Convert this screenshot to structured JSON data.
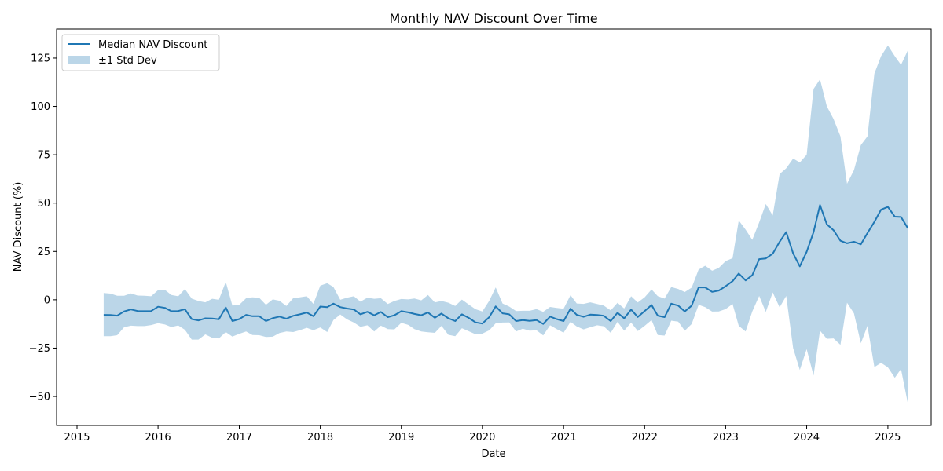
{
  "chart_data": {
    "type": "line",
    "title": "Monthly NAV Discount Over Time",
    "xlabel": "Date",
    "ylabel": "NAV Discount (%)",
    "xlim": [
      "2014-10-01",
      "2025-07-15"
    ],
    "ylim": [
      -65,
      140
    ],
    "x_ticks": [
      "2015-01-01",
      "2016-01-01",
      "2017-01-01",
      "2018-01-01",
      "2019-01-01",
      "2020-01-01",
      "2021-01-01",
      "2022-01-01",
      "2023-01-01",
      "2024-01-01",
      "2025-01-01"
    ],
    "x_tick_labels": [
      "2015",
      "2016",
      "2017",
      "2018",
      "2019",
      "2020",
      "2021",
      "2022",
      "2023",
      "2024",
      "2025"
    ],
    "y_ticks": [
      -50,
      -25,
      0,
      25,
      50,
      75,
      100,
      125
    ],
    "y_tick_labels": [
      "−50",
      "−25",
      "0",
      "25",
      "50",
      "75",
      "100",
      "125"
    ],
    "grid": false,
    "legend": {
      "placement": "top-left",
      "entries": [
        "Median NAV Discount",
        "±1 Std Dev"
      ]
    },
    "colors": {
      "line": "#1f77b4",
      "band": "#1f77b4",
      "band_opacity": 0.3
    },
    "series": [
      {
        "name": "Median NAV Discount",
        "x": [
          "2015-05",
          "2015-06",
          "2015-07",
          "2015-08",
          "2015-09",
          "2015-10",
          "2015-11",
          "2015-12",
          "2016-01",
          "2016-02",
          "2016-03",
          "2016-04",
          "2016-05",
          "2016-06",
          "2016-07",
          "2016-08",
          "2016-09",
          "2016-10",
          "2016-11",
          "2016-12",
          "2017-01",
          "2017-02",
          "2017-03",
          "2017-04",
          "2017-05",
          "2017-06",
          "2017-07",
          "2017-08",
          "2017-09",
          "2017-10",
          "2017-11",
          "2017-12",
          "2018-01",
          "2018-02",
          "2018-03",
          "2018-04",
          "2018-05",
          "2018-06",
          "2018-07",
          "2018-08",
          "2018-09",
          "2018-10",
          "2018-11",
          "2018-12",
          "2019-01",
          "2019-02",
          "2019-03",
          "2019-04",
          "2019-05",
          "2019-06",
          "2019-07",
          "2019-08",
          "2019-09",
          "2019-10",
          "2019-11",
          "2019-12",
          "2020-01",
          "2020-02",
          "2020-03",
          "2020-04",
          "2020-05",
          "2020-06",
          "2020-07",
          "2020-08",
          "2020-09",
          "2020-10",
          "2020-11",
          "2020-12",
          "2021-01",
          "2021-02",
          "2021-03",
          "2021-04",
          "2021-05",
          "2021-06",
          "2021-07",
          "2021-08",
          "2021-09",
          "2021-10",
          "2021-11",
          "2021-12",
          "2022-01",
          "2022-02",
          "2022-03",
          "2022-04",
          "2022-05",
          "2022-06",
          "2022-07",
          "2022-08",
          "2022-09",
          "2022-10",
          "2022-11",
          "2022-12",
          "2023-01",
          "2023-02",
          "2023-03",
          "2023-04",
          "2023-05",
          "2023-06",
          "2023-07",
          "2023-08",
          "2023-09",
          "2023-10",
          "2023-11",
          "2023-12",
          "2024-01",
          "2024-02",
          "2024-03",
          "2024-04",
          "2024-05",
          "2024-06",
          "2024-07",
          "2024-08",
          "2024-09",
          "2024-10",
          "2024-11",
          "2024-12",
          "2025-01",
          "2025-02",
          "2025-03",
          "2025-04"
        ],
        "median": [
          -7.8,
          -7.9,
          -8.2,
          -6.0,
          -5.0,
          -5.8,
          -5.9,
          -5.8,
          -3.6,
          -4.2,
          -5.9,
          -5.8,
          -4.9,
          -10.0,
          -10.7,
          -9.6,
          -9.7,
          -10.1,
          -4.0,
          -11.0,
          -10.0,
          -7.8,
          -8.5,
          -8.5,
          -11.0,
          -9.5,
          -8.7,
          -9.8,
          -8.3,
          -7.5,
          -6.6,
          -8.5,
          -3.5,
          -3.8,
          -2.0,
          -3.8,
          -4.5,
          -5.0,
          -7.5,
          -6.2,
          -8.0,
          -6.3,
          -9.0,
          -8.0,
          -5.9,
          -6.5,
          -7.3,
          -8.0,
          -6.6,
          -9.3,
          -7.1,
          -9.6,
          -11.0,
          -7.5,
          -9.4,
          -11.7,
          -12.3,
          -9.0,
          -3.4,
          -7.0,
          -7.5,
          -11.0,
          -10.5,
          -10.9,
          -10.5,
          -12.5,
          -8.7,
          -10.0,
          -11.0,
          -4.6,
          -7.8,
          -8.8,
          -7.7,
          -7.9,
          -8.3,
          -11.0,
          -6.7,
          -9.6,
          -5.1,
          -8.9,
          -5.8,
          -2.7,
          -8.2,
          -9.0,
          -2.0,
          -3.0,
          -6.0,
          -3.0,
          6.4,
          6.4,
          4.1,
          4.8,
          7.0,
          9.6,
          13.6,
          10.0,
          12.7,
          21.0,
          21.4,
          23.8,
          30.0,
          35.0,
          24.0,
          17.3,
          24.8,
          35.0,
          49.0,
          39.0,
          36.0,
          30.5,
          29.2,
          30.0,
          28.7,
          34.5,
          40.3,
          46.6,
          48.0,
          43.0,
          42.8,
          37.0
        ],
        "std_upper": [
          3.5,
          3.2,
          2.1,
          2.1,
          3.3,
          2.2,
          2.1,
          1.8,
          5.0,
          5.1,
          2.5,
          1.8,
          5.5,
          0.6,
          -0.6,
          -1.3,
          0.5,
          0.0,
          9.3,
          -3.0,
          -2.6,
          0.8,
          1.3,
          1.0,
          -2.6,
          0.2,
          -0.5,
          -3.2,
          0.8,
          1.3,
          1.8,
          -2.1,
          7.3,
          8.6,
          6.6,
          0.0,
          1.1,
          1.8,
          -1.0,
          1.1,
          0.5,
          0.8,
          -2.2,
          -0.6,
          0.4,
          0.2,
          0.7,
          -0.3,
          2.5,
          -1.4,
          -0.6,
          -1.5,
          -3.2,
          0.1,
          -2.5,
          -4.9,
          -6.0,
          -0.5,
          6.4,
          -1.9,
          -3.5,
          -5.8,
          -5.7,
          -5.7,
          -4.8,
          -6.2,
          -3.7,
          -4.2,
          -4.6,
          2.4,
          -1.9,
          -2.1,
          -1.3,
          -2.2,
          -3.0,
          -5.5,
          -1.6,
          -4.5,
          1.8,
          -1.4,
          1.3,
          5.3,
          1.9,
          0.6,
          6.6,
          5.6,
          4.0,
          6.3,
          15.6,
          17.6,
          15.0,
          16.5,
          20.0,
          21.5,
          41.0,
          36.3,
          31.0,
          40.0,
          49.5,
          43.6,
          65.0,
          68.0,
          73.0,
          71.0,
          75.0,
          109.0,
          114.0,
          100.0,
          93.5,
          84.5,
          60.0,
          67.0,
          80.0,
          84.5,
          117.0,
          126.0,
          131.5,
          126.0,
          121.5,
          129.0
        ],
        "std_lower": [
          -18.8,
          -18.8,
          -18.3,
          -14.2,
          -13.4,
          -13.6,
          -13.6,
          -13.1,
          -12.1,
          -12.8,
          -14.1,
          -13.3,
          -15.5,
          -20.6,
          -20.6,
          -17.9,
          -19.6,
          -20.0,
          -16.7,
          -19.0,
          -17.6,
          -16.4,
          -18.2,
          -18.3,
          -19.2,
          -19.1,
          -17.2,
          -16.4,
          -16.7,
          -15.7,
          -14.5,
          -15.7,
          -14.3,
          -16.7,
          -10.5,
          -7.6,
          -10.1,
          -11.8,
          -14.0,
          -13.2,
          -16.4,
          -13.4,
          -15.2,
          -15.3,
          -11.9,
          -13.0,
          -15.2,
          -16.4,
          -16.8,
          -17.1,
          -13.5,
          -18.1,
          -18.8,
          -14.7,
          -16.3,
          -17.8,
          -17.5,
          -15.8,
          -12.2,
          -11.8,
          -11.7,
          -16.4,
          -15.0,
          -16.0,
          -15.8,
          -18.4,
          -13.2,
          -15.2,
          -17.0,
          -11.4,
          -13.8,
          -15.3,
          -14.2,
          -13.2,
          -13.7,
          -17.1,
          -11.4,
          -16.0,
          -11.8,
          -16.2,
          -13.5,
          -10.5,
          -18.2,
          -18.5,
          -10.8,
          -11.3,
          -16.0,
          -12.5,
          -2.6,
          -3.8,
          -6.1,
          -6.0,
          -4.8,
          -2.2,
          -13.5,
          -16.4,
          -6.0,
          2.0,
          -6.3,
          3.8,
          -3.9,
          2.0,
          -25.0,
          -36.3,
          -25.5,
          -39.2,
          -16.0,
          -20.2,
          -20.0,
          -23.3,
          -1.5,
          -7.0,
          -22.5,
          -13.5,
          -34.8,
          -32.6,
          -34.9,
          -40.3,
          -35.8,
          -53.6
        ]
      }
    ]
  }
}
